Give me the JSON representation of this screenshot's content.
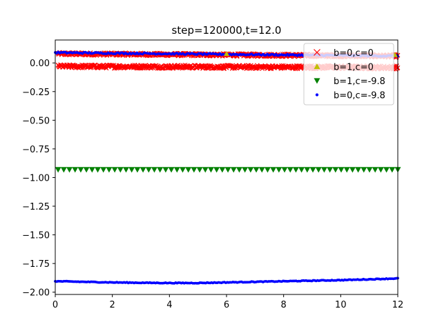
{
  "chart_data": {
    "type": "scatter",
    "title": "step=120000,t=12.0",
    "xlabel": "",
    "ylabel": "",
    "xlim": [
      0,
      12
    ],
    "ylim": [
      -2.02,
      0.2
    ],
    "xticks": [
      0,
      2,
      4,
      6,
      8,
      10,
      12
    ],
    "xtick_labels": [
      "0",
      "2",
      "4",
      "6",
      "8",
      "10",
      "12"
    ],
    "yticks": [
      0.0,
      -0.25,
      -0.5,
      -0.75,
      -1.0,
      -1.25,
      -1.5,
      -1.75,
      -2.0
    ],
    "ytick_labels": [
      "0.00",
      "−0.25",
      "−0.50",
      "−0.75",
      "−1.00",
      "−1.25",
      "−1.50",
      "−1.75",
      "−2.00"
    ],
    "grid": false,
    "legend_position": "top-right",
    "series": [
      {
        "name": "b=0,c=0",
        "marker": "x",
        "color": "#ff0000",
        "x_range": [
          0.1,
          12
        ],
        "y_upper_start": 0.08,
        "y_upper_end": 0.06,
        "y_lower_start": -0.03,
        "y_lower_end": -0.04,
        "points_per_band": 600
      },
      {
        "name": "b=1,c=0",
        "marker": "^",
        "color": "#bfbf00",
        "x": [
          6.0,
          11.9
        ],
        "y": [
          0.08,
          0.07
        ]
      },
      {
        "name": "b=1,c=-9.8",
        "marker": "v",
        "color": "#008000",
        "x_range": [
          0.1,
          12
        ],
        "y": -0.93,
        "count": 61
      },
      {
        "name": "b=0,c=-9.8",
        "marker": "o",
        "color": "#0000ff",
        "x_range": [
          0.0,
          12
        ],
        "y_upper_start": 0.09,
        "y_upper_end": 0.06,
        "lower_curve_x": [
          0,
          1,
          2,
          3,
          4,
          5,
          6,
          7,
          8,
          9,
          10,
          11,
          12
        ],
        "lower_curve_y": [
          -1.905,
          -1.91,
          -1.915,
          -1.918,
          -1.92,
          -1.92,
          -1.915,
          -1.91,
          -1.905,
          -1.9,
          -1.895,
          -1.888,
          -1.88
        ],
        "points_per_band": 240
      }
    ]
  }
}
